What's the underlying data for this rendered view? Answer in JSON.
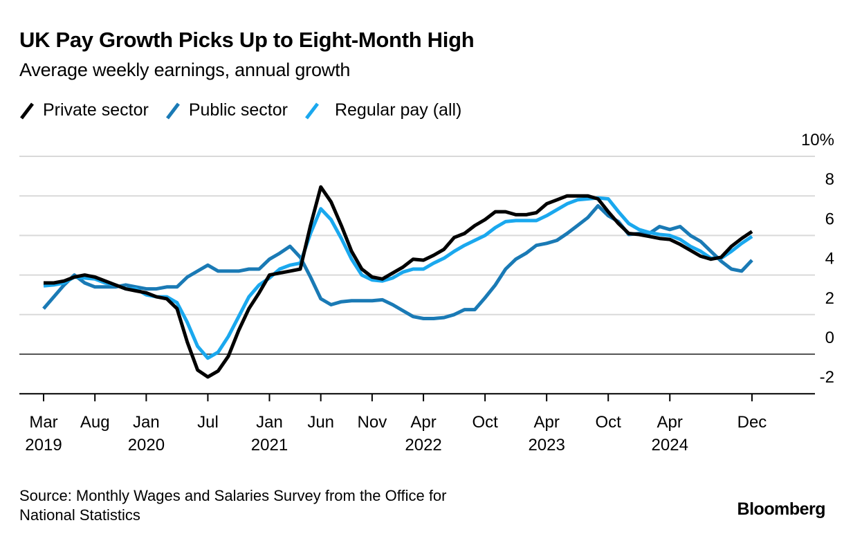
{
  "title": "UK Pay Growth Picks Up to Eight-Month High",
  "subtitle": "Average weekly earnings, annual growth",
  "source": "Source: Monthly Wages and Salaries Survey from the Office for National Statistics",
  "source_lines": [
    "Source: Monthly Wages and Salaries Survey from the Office for",
    "National Statistics"
  ],
  "brand": "Bloomberg",
  "legend": [
    {
      "label": "Private sector",
      "color": "#000000"
    },
    {
      "label": "Public sector",
      "color": "#1a7ab5"
    },
    {
      "label": "Regular pay (all)",
      "color": "#1aa8ee"
    }
  ],
  "chart_data": {
    "type": "line",
    "title": "UK Pay Growth Picks Up to Eight-Month High",
    "subtitle": "Average weekly earnings, annual growth",
    "xlabel": "",
    "ylabel": "",
    "ylim": [
      -2,
      10
    ],
    "y_ticks": [
      10,
      8,
      6,
      4,
      2,
      0,
      -2
    ],
    "y_tick_labels": [
      "10%",
      "8",
      "6",
      "4",
      "2",
      "0",
      "-2"
    ],
    "y_axis_side": "right",
    "grid": true,
    "legend_position": "top-left",
    "x_start": "2019-03",
    "x_end": "2024-12",
    "x_ticks": [
      {
        "index": 0,
        "month": "Mar",
        "year": "2019"
      },
      {
        "index": 5,
        "month": "Aug",
        "year": ""
      },
      {
        "index": 10,
        "month": "Jan",
        "year": "2020"
      },
      {
        "index": 16,
        "month": "Jul",
        "year": ""
      },
      {
        "index": 22,
        "month": "Jan",
        "year": "2021"
      },
      {
        "index": 27,
        "month": "Jun",
        "year": ""
      },
      {
        "index": 32,
        "month": "Nov",
        "year": ""
      },
      {
        "index": 37,
        "month": "Apr",
        "year": "2022"
      },
      {
        "index": 43,
        "month": "Oct",
        "year": ""
      },
      {
        "index": 49,
        "month": "Apr",
        "year": "2023"
      },
      {
        "index": 55,
        "month": "Oct",
        "year": ""
      },
      {
        "index": 61,
        "month": "Apr",
        "year": "2024"
      },
      {
        "index": 69,
        "month": "Dec",
        "year": ""
      }
    ],
    "series": [
      {
        "name": "Public sector",
        "color": "#1a7ab5",
        "values": [
          2.3,
          2.9,
          3.5,
          4.0,
          3.6,
          3.4,
          3.4,
          3.4,
          3.5,
          3.4,
          3.3,
          3.3,
          3.4,
          3.4,
          3.9,
          4.2,
          4.5,
          4.2,
          4.2,
          4.2,
          4.3,
          4.3,
          4.8,
          5.1,
          5.45,
          4.9,
          3.9,
          2.8,
          2.5,
          2.65,
          2.7,
          2.7,
          2.7,
          2.75,
          2.5,
          2.2,
          1.9,
          1.8,
          1.8,
          1.85,
          2.0,
          2.25,
          2.25,
          2.85,
          3.5,
          4.3,
          4.8,
          5.1,
          5.5,
          5.6,
          5.75,
          6.1,
          6.5,
          6.9,
          7.5,
          7.0,
          6.7,
          6.05,
          6.1,
          6.1,
          6.45,
          6.3,
          6.45,
          6.0,
          5.7,
          5.2,
          4.7,
          4.3,
          4.2,
          4.75
        ]
      },
      {
        "name": "Regular pay (all)",
        "color": "#1aa8ee",
        "values": [
          3.45,
          3.5,
          3.6,
          3.9,
          3.85,
          3.8,
          3.6,
          3.5,
          3.3,
          3.3,
          3.0,
          2.9,
          2.9,
          2.6,
          1.6,
          0.4,
          -0.2,
          0.1,
          0.9,
          1.9,
          2.9,
          3.5,
          3.85,
          4.3,
          4.5,
          4.6,
          6.1,
          7.35,
          6.8,
          5.85,
          4.8,
          4.0,
          3.75,
          3.7,
          3.85,
          4.15,
          4.3,
          4.3,
          4.6,
          4.85,
          5.2,
          5.5,
          5.75,
          6.0,
          6.4,
          6.7,
          6.75,
          6.75,
          6.75,
          7.0,
          7.3,
          7.6,
          7.8,
          7.85,
          7.9,
          7.85,
          7.2,
          6.6,
          6.3,
          6.15,
          6.05,
          6.0,
          5.8,
          5.45,
          5.2,
          4.85,
          4.85,
          5.2,
          5.6,
          5.95
        ]
      },
      {
        "name": "Private sector",
        "color": "#000000",
        "values": [
          3.6,
          3.6,
          3.7,
          3.9,
          4.0,
          3.9,
          3.7,
          3.5,
          3.3,
          3.2,
          3.1,
          2.9,
          2.8,
          2.3,
          0.6,
          -0.8,
          -1.15,
          -0.85,
          -0.1,
          1.2,
          2.3,
          3.1,
          4.0,
          4.1,
          4.2,
          4.3,
          6.5,
          8.45,
          7.7,
          6.5,
          5.2,
          4.3,
          3.9,
          3.8,
          4.1,
          4.4,
          4.8,
          4.75,
          5.0,
          5.3,
          5.9,
          6.1,
          6.5,
          6.8,
          7.2,
          7.2,
          7.05,
          7.05,
          7.15,
          7.6,
          7.8,
          8.0,
          8.0,
          8.0,
          7.85,
          7.2,
          6.6,
          6.1,
          6.05,
          5.95,
          5.85,
          5.8,
          5.55,
          5.25,
          4.95,
          4.8,
          4.9,
          5.45,
          5.85,
          6.2
        ]
      }
    ]
  }
}
